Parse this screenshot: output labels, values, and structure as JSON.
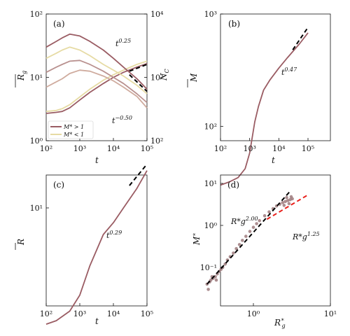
{
  "chart_data": [
    {
      "panel": "(a)",
      "type": "line",
      "xlabel": "t",
      "ylabel": "R̄g",
      "ylabel_right": "N_C",
      "xscale": "log",
      "yscale": "log",
      "y2scale": "log",
      "xlim": [
        100,
        100000
      ],
      "ylim": [
        1,
        100
      ],
      "y2lim": [
        100,
        10000
      ],
      "x_ticks": [
        "10²",
        "10³",
        "10⁴",
        "10⁵"
      ],
      "y_ticks": [
        "10⁰",
        "10¹",
        "10²"
      ],
      "y2_ticks": [
        "10²",
        "10³",
        "10⁴"
      ],
      "x": [
        100,
        200,
        300,
        500,
        1000,
        2000,
        5000,
        10000,
        20000,
        50000,
        100000
      ],
      "series": [
        {
          "legend": "M* > 1",
          "axis": "left",
          "color": "#9a5c63",
          "values": [
            2.7,
            2.8,
            2.9,
            3.3,
            4.4,
            5.8,
            8.0,
            10.0,
            12.0,
            14.5,
            16.5
          ]
        },
        {
          "legend": "M* < 1",
          "axis": "left",
          "color": "#e6dba4",
          "values": [
            2.9,
            3.0,
            3.2,
            3.7,
            4.9,
            6.5,
            9.0,
            11.0,
            13.0,
            16.0,
            18.0
          ]
        },
        {
          "axis": "left",
          "color": "#b9918f",
          "values": [
            12.0,
            14.5,
            16.0,
            18.0,
            18.5,
            16.0,
            12.5,
            10.0,
            8.0,
            5.5,
            4.0
          ]
        },
        {
          "axis": "left",
          "color": "#e6dba4",
          "values": [
            20.0,
            24.0,
            27.0,
            30.0,
            27.0,
            22.0,
            16.0,
            13.0,
            10.5,
            7.5,
            5.5
          ]
        },
        {
          "axis": "left",
          "color": "#9a5c63",
          "values": [
            30.0,
            37.0,
            42.0,
            48.0,
            45.0,
            37.0,
            27.0,
            20.0,
            14.5,
            9.5,
            6.5
          ]
        },
        {
          "axis": "left",
          "color": "#cfab9e",
          "values": [
            7.0,
            8.5,
            9.5,
            11.5,
            13.0,
            12.5,
            10.5,
            8.8,
            7.0,
            5.0,
            3.3
          ]
        }
      ],
      "guides": [
        {
          "label": "t",
          "exponent": "0.25",
          "from": [
            30000,
            12.5
          ],
          "to": [
            100000,
            16.0
          ]
        },
        {
          "label": "t",
          "exponent": "−0.50",
          "from": [
            30000,
            11.0
          ],
          "to": [
            100000,
            6.0
          ]
        }
      ],
      "legend_position": "lower-left"
    },
    {
      "panel": "(b)",
      "type": "line",
      "xlabel": "t",
      "ylabel": "M̄",
      "xscale": "log",
      "yscale": "log",
      "xlim": [
        100,
        150000
      ],
      "ylim": [
        20,
        1000
      ],
      "x_ticks": [
        "10²",
        "10³",
        "10⁴",
        "10⁵"
      ],
      "y_ticks": [
        "10²",
        "10³"
      ],
      "x": [
        100,
        200,
        400,
        700,
        1000,
        1500,
        2000,
        3000,
        5000,
        10000,
        20000,
        50000,
        100000
      ],
      "series": [
        {
          "color": "#9a5c63",
          "values": [
            30,
            32,
            35,
            42,
            58,
            110,
            150,
            210,
            260,
            330,
            410,
            540,
            680
          ]
        }
      ],
      "guides": [
        {
          "label": "t",
          "exponent": "0.47",
          "from": [
            30000,
            480
          ],
          "to": [
            100000,
            760
          ]
        }
      ]
    },
    {
      "panel": "(c)",
      "type": "line",
      "xlabel": "t",
      "ylabel": "R̄",
      "xscale": "log",
      "yscale": "log",
      "xlim": [
        100,
        100000
      ],
      "ylim": [
        1.4,
        25
      ],
      "x_ticks": [
        "10²",
        "10³",
        "10⁴",
        "10⁵"
      ],
      "y_ticks": [
        "10¹"
      ],
      "x": [
        100,
        200,
        500,
        1000,
        2000,
        5000,
        10000,
        20000,
        50000,
        100000
      ],
      "series": [
        {
          "color": "#9a5c63",
          "values": [
            2.1,
            2.2,
            2.5,
            3.1,
            4.6,
            7.0,
            8.2,
            10.0,
            13.0,
            16.5
          ]
        }
      ],
      "guides": [
        {
          "label": "t",
          "exponent": "0.29",
          "from": [
            30000,
            13.5
          ],
          "to": [
            100000,
            18.0
          ]
        }
      ]
    },
    {
      "panel": "(d)",
      "type": "scatter",
      "xlabel": "R*g",
      "ylabel": "M*",
      "xscale": "log",
      "yscale": "log",
      "xlim": [
        0.25,
        10
      ],
      "ylim": [
        0.02,
        12
      ],
      "x_ticks": [
        "10⁰",
        "10¹"
      ],
      "y_ticks": [
        "10⁻¹",
        "10⁰",
        "10¹"
      ],
      "series": [
        {
          "color": "#9e7a7d",
          "x": [
            0.25,
            0.27,
            0.28,
            0.3,
            0.32,
            0.34,
            0.36,
            0.38,
            0.4,
            0.43,
            0.46,
            0.5,
            0.55,
            0.6,
            0.66,
            0.72,
            0.8,
            0.9,
            1.0,
            1.1,
            1.2,
            1.4,
            1.6,
            1.8,
            2.0,
            2.2,
            2.4,
            2.6,
            2.8,
            3.0,
            3.2,
            2.5,
            2.7,
            2.9,
            3.1,
            0.26,
            0.29,
            0.33
          ],
          "y": [
            0.04,
            0.045,
            0.05,
            0.055,
            0.06,
            0.07,
            0.08,
            0.09,
            0.1,
            0.12,
            0.15,
            0.18,
            0.22,
            0.28,
            0.35,
            0.44,
            0.55,
            0.72,
            0.9,
            1.1,
            1.3,
            1.7,
            2.1,
            2.5,
            2.9,
            3.2,
            3.5,
            3.7,
            3.9,
            4.1,
            4.3,
            3.0,
            4.6,
            3.3,
            4.8,
            0.03,
            0.06,
            0.05
          ]
        }
      ],
      "guides": [
        {
          "label": "R*g",
          "exponent": "2.00",
          "color": "#000000",
          "from": [
            0.25,
            0.04
          ],
          "to": [
            3.0,
            6.5
          ]
        },
        {
          "label": "R*g",
          "exponent": "1.25",
          "color": "#e8201c",
          "from": [
            1.5,
            1.4
          ],
          "to": [
            5.0,
            5.2
          ]
        }
      ]
    }
  ]
}
